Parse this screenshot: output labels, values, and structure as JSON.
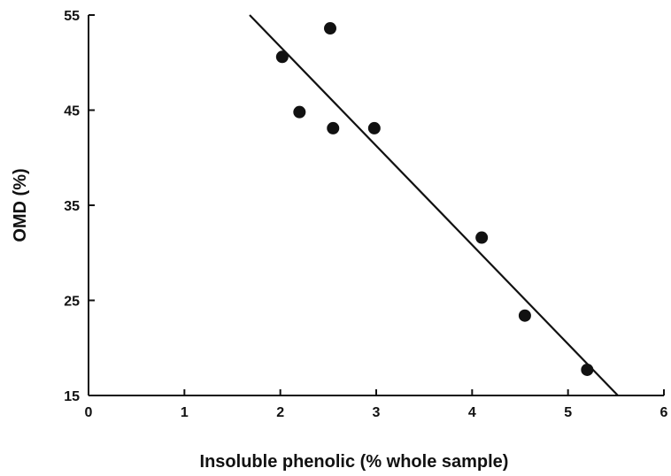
{
  "chart_data": {
    "type": "scatter",
    "title": "",
    "xlabel": "Insoluble phenolic (% whole sample)",
    "ylabel": "OMD (%)",
    "xlim": [
      0,
      6
    ],
    "ylim": [
      15,
      55
    ],
    "xticks": [
      0,
      1,
      2,
      3,
      4,
      5,
      6
    ],
    "yticks": [
      15,
      25,
      35,
      45,
      55
    ],
    "grid": false,
    "series": [
      {
        "points": [
          {
            "x": 2.02,
            "y": 50.6
          },
          {
            "x": 2.52,
            "y": 53.6
          },
          {
            "x": 2.2,
            "y": 44.8
          },
          {
            "x": 2.55,
            "y": 43.1
          },
          {
            "x": 2.98,
            "y": 43.1
          },
          {
            "x": 4.1,
            "y": 31.6
          },
          {
            "x": 4.55,
            "y": 23.4
          },
          {
            "x": 5.2,
            "y": 17.7
          }
        ]
      }
    ],
    "trendline": {
      "x": [
        1.68,
        5.52
      ],
      "y": [
        55.0,
        15.0
      ]
    }
  }
}
